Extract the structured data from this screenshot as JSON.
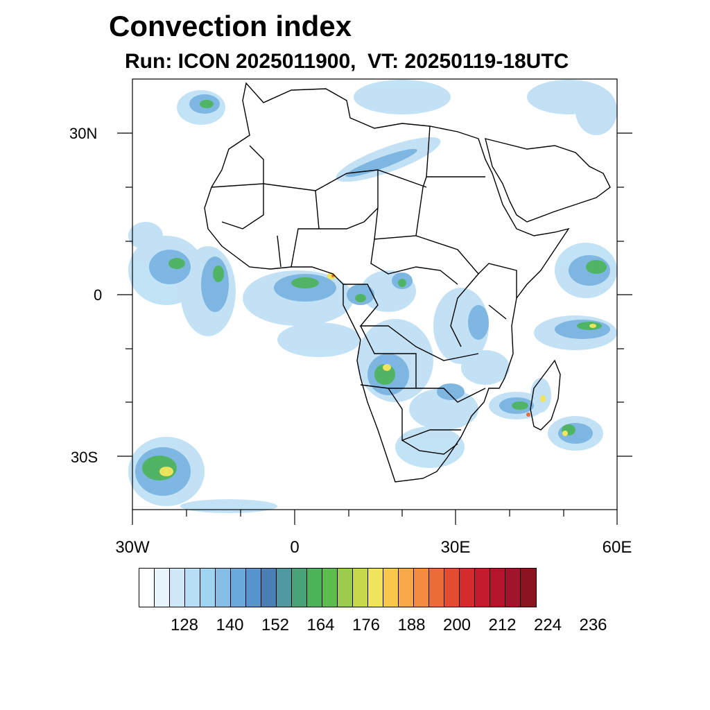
{
  "title": "Convection index",
  "subtitle": "Run: ICON 2025011900,  VT: 20250119-18UTC",
  "map": {
    "lon_range": [
      "30W",
      "60E"
    ],
    "lat_range": [
      "40S",
      "40N"
    ],
    "lat_labels": [
      "30N",
      "0",
      "30S"
    ],
    "lon_labels": [
      "30W",
      "0",
      "30E",
      "60E"
    ],
    "coastline_color": "#000000"
  },
  "colorbar": {
    "colors": [
      "#ffffff",
      "#e8f4fc",
      "#cfe8f7",
      "#b7def4",
      "#9fd4f1",
      "#86bde5",
      "#6aa9dc",
      "#5594cc",
      "#4a7fb5",
      "#4e9aa0",
      "#48a478",
      "#4cb458",
      "#5cbc4c",
      "#9ccc4c",
      "#c8d84c",
      "#f0e45c",
      "#f8c84c",
      "#f8a848",
      "#f48c40",
      "#ec6c38",
      "#e44c30",
      "#d42c2c",
      "#c41c2c",
      "#b4142c",
      "#a0142c",
      "#8c1420"
    ],
    "labels": [
      "128",
      "140",
      "152",
      "164",
      "176",
      "188",
      "200",
      "212",
      "224",
      "236"
    ]
  }
}
